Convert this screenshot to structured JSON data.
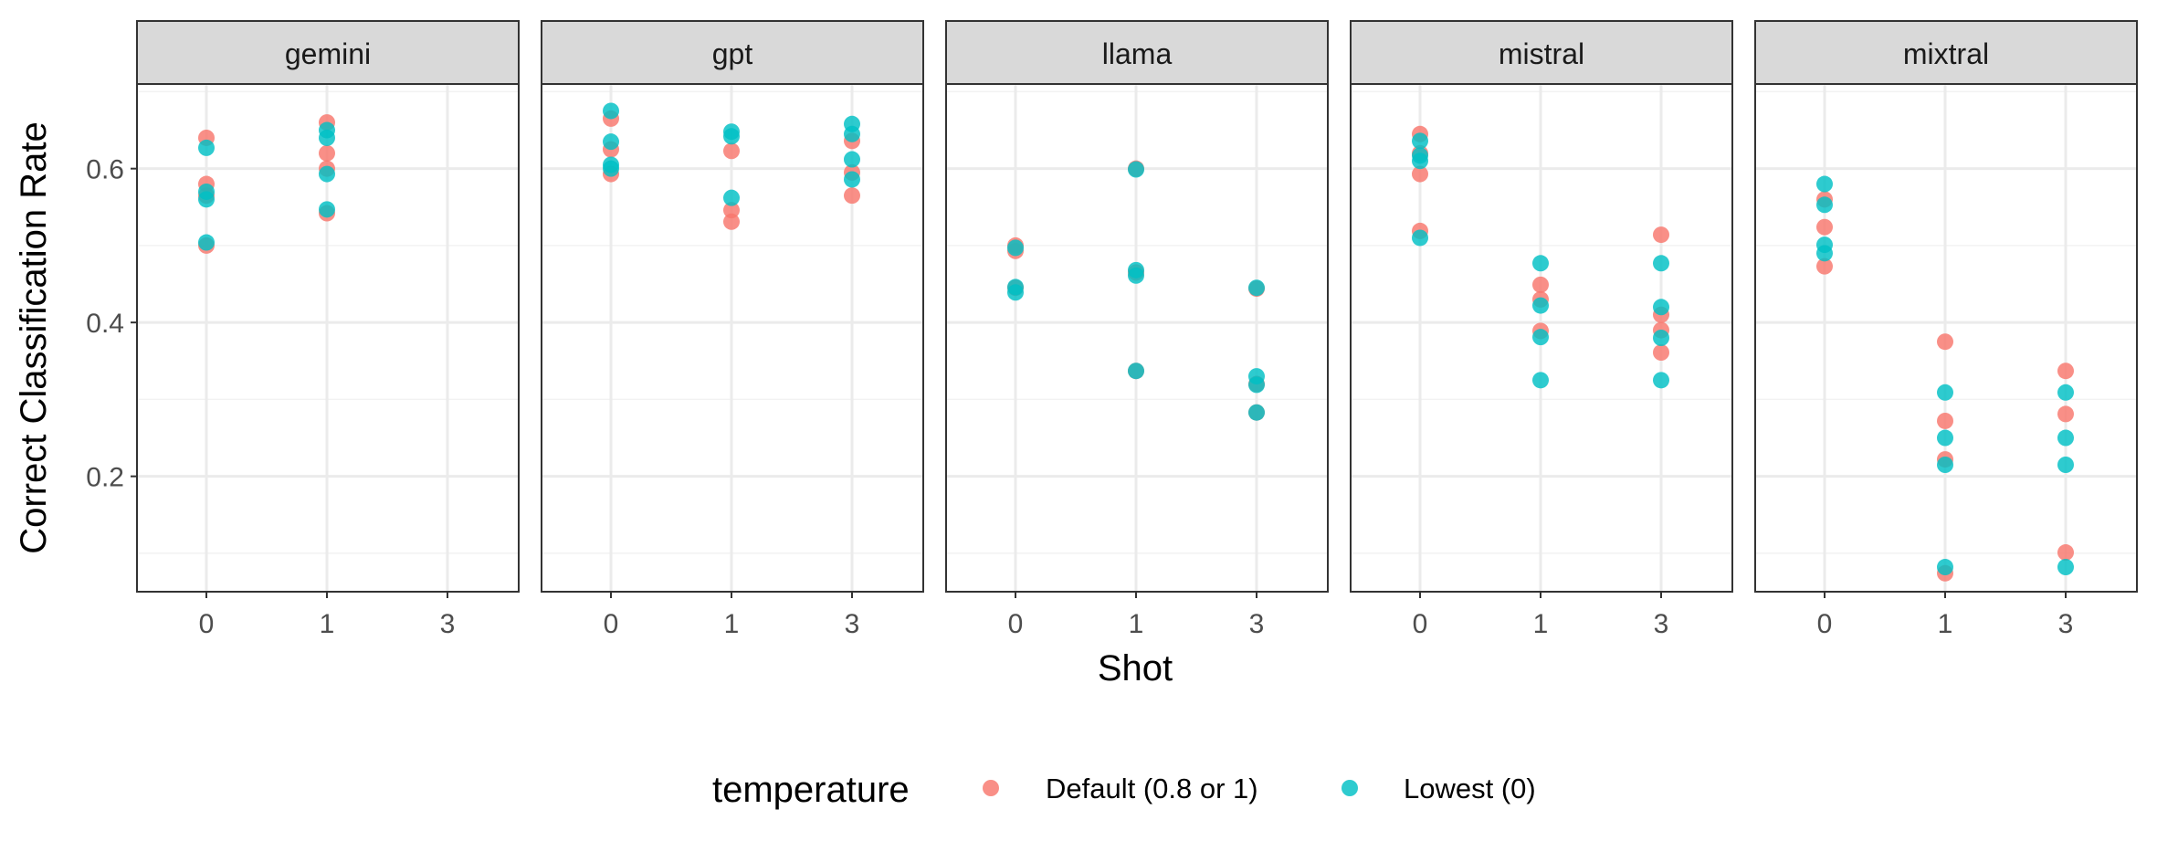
{
  "chart_data": {
    "type": "scatter",
    "facet_by": "model",
    "xlabel": "Shot",
    "ylabel": "Correct Classification Rate",
    "x_categories": [
      "0",
      "1",
      "3"
    ],
    "ylim": [
      0.05,
      0.71
    ],
    "y_ticks": [
      0.2,
      0.4,
      0.6
    ],
    "y_tick_labels": [
      "0.2",
      "0.4",
      "0.6"
    ],
    "grid": true,
    "legend": {
      "title": "temperature",
      "placement": "bottom",
      "entries": [
        {
          "key": "default",
          "label": "Default (0.8 or 1)",
          "color": "#F8766D"
        },
        {
          "key": "lowest",
          "label": "Lowest (0)",
          "color": "#00BFC4"
        }
      ]
    },
    "facets": [
      {
        "label": "gemini",
        "points": {
          "default": [
            [
              "0",
              0.64
            ],
            [
              "0",
              0.58
            ],
            [
              "0",
              0.565
            ],
            [
              "0",
              0.5
            ],
            [
              "1",
              0.66
            ],
            [
              "1",
              0.62
            ],
            [
              "1",
              0.6
            ],
            [
              "1",
              0.542
            ]
          ],
          "lowest": [
            [
              "0",
              0.627
            ],
            [
              "0",
              0.57
            ],
            [
              "0",
              0.56
            ],
            [
              "0",
              0.504
            ],
            [
              "1",
              0.65
            ],
            [
              "1",
              0.64
            ],
            [
              "1",
              0.593
            ],
            [
              "1",
              0.547
            ]
          ]
        }
      },
      {
        "label": "gpt",
        "points": {
          "default": [
            [
              "0",
              0.665
            ],
            [
              "0",
              0.625
            ],
            [
              "0",
              0.593
            ],
            [
              "1",
              0.623
            ],
            [
              "1",
              0.546
            ],
            [
              "1",
              0.531
            ],
            [
              "3",
              0.636
            ],
            [
              "3",
              0.595
            ],
            [
              "3",
              0.565
            ]
          ],
          "lowest": [
            [
              "0",
              0.675
            ],
            [
              "0",
              0.635
            ],
            [
              "0",
              0.605
            ],
            [
              "0",
              0.6
            ],
            [
              "1",
              0.648
            ],
            [
              "1",
              0.642
            ],
            [
              "1",
              0.562
            ],
            [
              "3",
              0.658
            ],
            [
              "3",
              0.645
            ],
            [
              "3",
              0.612
            ],
            [
              "3",
              0.586
            ]
          ]
        }
      },
      {
        "label": "llama",
        "points": {
          "default": [
            [
              "0",
              0.5
            ],
            [
              "0",
              0.493
            ],
            [
              "0",
              0.445
            ],
            [
              "1",
              0.6
            ],
            [
              "1",
              0.465
            ],
            [
              "1",
              0.337
            ],
            [
              "3",
              0.444
            ],
            [
              "3",
              0.32
            ],
            [
              "3",
              0.283
            ]
          ],
          "lowest": [
            [
              "0",
              0.497
            ],
            [
              "0",
              0.446
            ],
            [
              "0",
              0.439
            ],
            [
              "1",
              0.599
            ],
            [
              "1",
              0.468
            ],
            [
              "1",
              0.461
            ],
            [
              "1",
              0.337
            ],
            [
              "3",
              0.445
            ],
            [
              "3",
              0.33
            ],
            [
              "3",
              0.319
            ],
            [
              "3",
              0.283
            ]
          ]
        }
      },
      {
        "label": "mistral",
        "points": {
          "default": [
            [
              "0",
              0.645
            ],
            [
              "0",
              0.62
            ],
            [
              "0",
              0.593
            ],
            [
              "0",
              0.519
            ],
            [
              "1",
              0.449
            ],
            [
              "1",
              0.43
            ],
            [
              "1",
              0.389
            ],
            [
              "3",
              0.514
            ],
            [
              "3",
              0.41
            ],
            [
              "3",
              0.39
            ],
            [
              "3",
              0.361
            ]
          ],
          "lowest": [
            [
              "0",
              0.636
            ],
            [
              "0",
              0.617
            ],
            [
              "0",
              0.61
            ],
            [
              "0",
              0.51
            ],
            [
              "1",
              0.477
            ],
            [
              "1",
              0.422
            ],
            [
              "1",
              0.381
            ],
            [
              "1",
              0.325
            ],
            [
              "3",
              0.477
            ],
            [
              "3",
              0.42
            ],
            [
              "3",
              0.38
            ],
            [
              "3",
              0.325
            ]
          ]
        }
      },
      {
        "label": "mixtral",
        "points": {
          "default": [
            [
              "0",
              0.56
            ],
            [
              "0",
              0.524
            ],
            [
              "0",
              0.473
            ],
            [
              "1",
              0.375
            ],
            [
              "1",
              0.272
            ],
            [
              "1",
              0.222
            ],
            [
              "1",
              0.074
            ],
            [
              "3",
              0.337
            ],
            [
              "3",
              0.281
            ],
            [
              "3",
              0.101
            ]
          ],
          "lowest": [
            [
              "0",
              0.58
            ],
            [
              "0",
              0.553
            ],
            [
              "0",
              0.501
            ],
            [
              "0",
              0.49
            ],
            [
              "1",
              0.309
            ],
            [
              "1",
              0.25
            ],
            [
              "1",
              0.215
            ],
            [
              "1",
              0.082
            ],
            [
              "3",
              0.309
            ],
            [
              "3",
              0.25
            ],
            [
              "3",
              0.215
            ],
            [
              "3",
              0.082
            ]
          ]
        }
      }
    ]
  }
}
